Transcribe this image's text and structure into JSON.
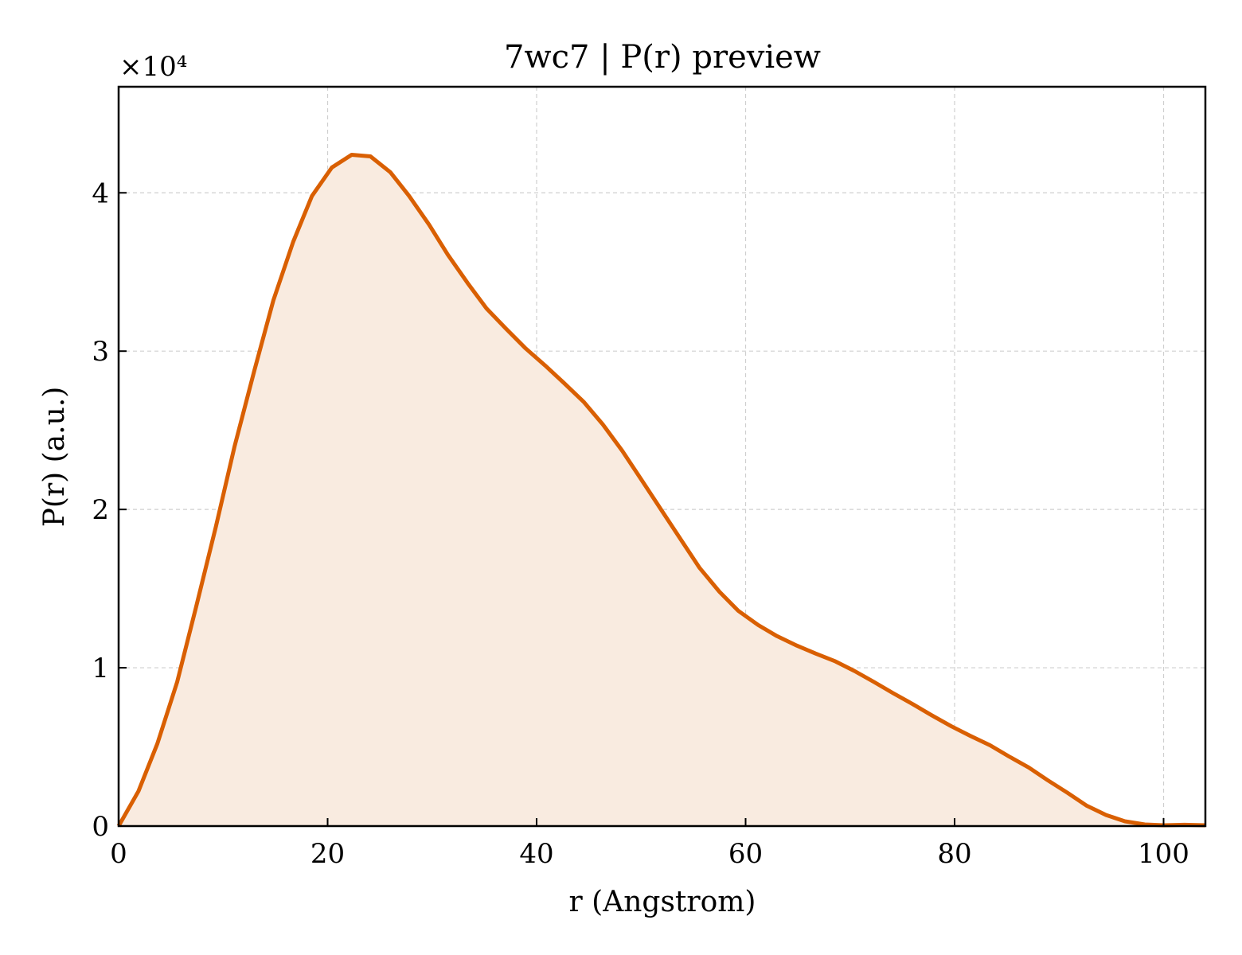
{
  "chart_data": {
    "type": "area",
    "title": "7wc7 | P(r) preview",
    "xlabel": "r (Angstrom)",
    "ylabel": "P(r) (a.u.)",
    "y_multiplier": "×10⁴",
    "xlim": [
      0,
      104
    ],
    "ylim": [
      0,
      4.67
    ],
    "x_ticks": [
      0,
      20,
      40,
      60,
      80,
      100
    ],
    "x_tick_labels": [
      "0",
      "20",
      "40",
      "60",
      "80",
      "100"
    ],
    "y_ticks": [
      0,
      1,
      2,
      3,
      4
    ],
    "y_tick_labels": [
      "0",
      "1",
      "2",
      "3",
      "4"
    ],
    "grid": true,
    "y_scale_factor": 10000,
    "line_color": "#d95f02",
    "fill_color": "#f9ebe0",
    "series": [
      {
        "x": [
          0,
          1.9,
          3.7,
          5.6,
          7.4,
          9.3,
          11.1,
          13.0,
          14.8,
          16.7,
          18.5,
          20.4,
          22.3,
          24.1,
          26.0,
          27.8,
          29.7,
          31.5,
          33.4,
          35.2,
          37.1,
          38.9,
          40.8,
          42.6,
          44.5,
          46.3,
          48.2,
          50.0,
          51.9,
          53.8,
          55.6,
          57.5,
          59.3,
          61.2,
          63.0,
          64.9,
          66.7,
          68.6,
          70.4,
          72.3,
          74.1,
          76.0,
          77.8,
          79.7,
          81.5,
          83.4,
          85.2,
          87.1,
          88.9,
          90.8,
          92.6,
          94.5,
          96.3,
          98.2,
          100.0,
          102.0,
          104.0
        ],
        "y": [
          0.0,
          0.22,
          0.52,
          0.91,
          1.38,
          1.89,
          2.4,
          2.88,
          3.32,
          3.69,
          3.98,
          4.16,
          4.24,
          4.23,
          4.13,
          3.98,
          3.8,
          3.61,
          3.43,
          3.27,
          3.14,
          3.02,
          2.91,
          2.8,
          2.68,
          2.54,
          2.37,
          2.19,
          2.0,
          1.81,
          1.63,
          1.48,
          1.36,
          1.27,
          1.2,
          1.14,
          1.09,
          1.04,
          0.98,
          0.91,
          0.84,
          0.77,
          0.7,
          0.63,
          0.57,
          0.51,
          0.44,
          0.37,
          0.29,
          0.21,
          0.13,
          0.07,
          0.03,
          0.01,
          0.005,
          0.008,
          0.005
        ]
      }
    ]
  }
}
